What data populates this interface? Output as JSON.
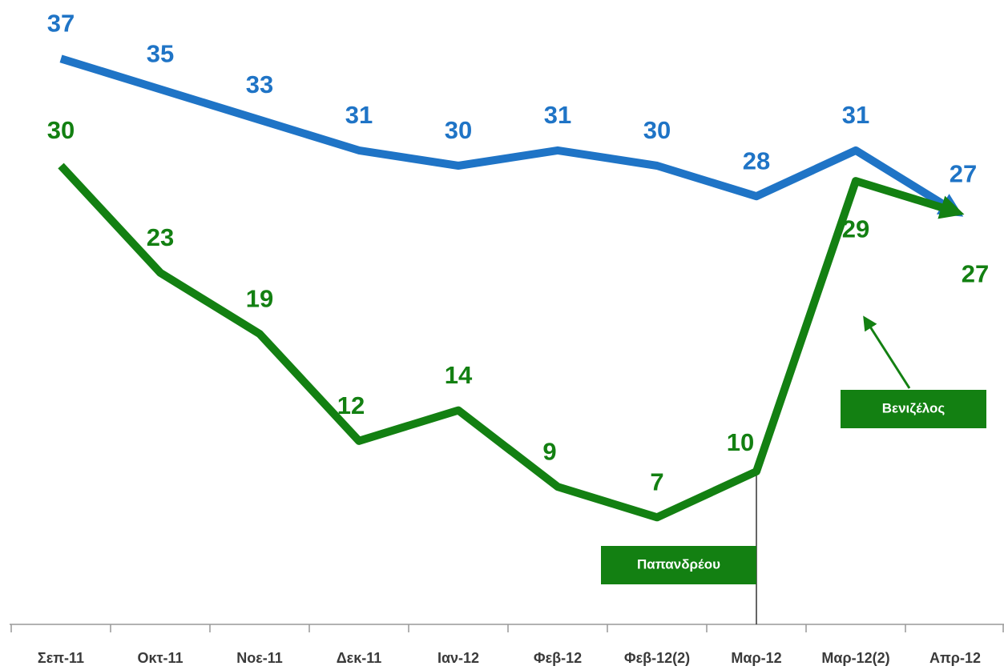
{
  "chart_data": {
    "type": "line",
    "categories": [
      "Σεπ-11",
      "Οκτ-11",
      "Νοε-11",
      "Δεκ-11",
      "Ιαν-12",
      "Φεβ-12",
      "Φεβ-12(2)",
      "Μαρ-12",
      "Μαρ-12(2)",
      "Απρ-12"
    ],
    "series": [
      {
        "color": "#1f74c6",
        "values": [
          37,
          35,
          33,
          31,
          30,
          31,
          30,
          28,
          31,
          27
        ]
      },
      {
        "color": "#138012",
        "values": [
          30,
          23,
          19,
          12,
          14,
          9,
          7,
          10,
          29,
          27
        ]
      }
    ],
    "ylim": [
      0,
      40
    ],
    "annotations": [
      {
        "text": "Παπανδρέου"
      },
      {
        "text": "Βενιζέλος"
      }
    ]
  }
}
